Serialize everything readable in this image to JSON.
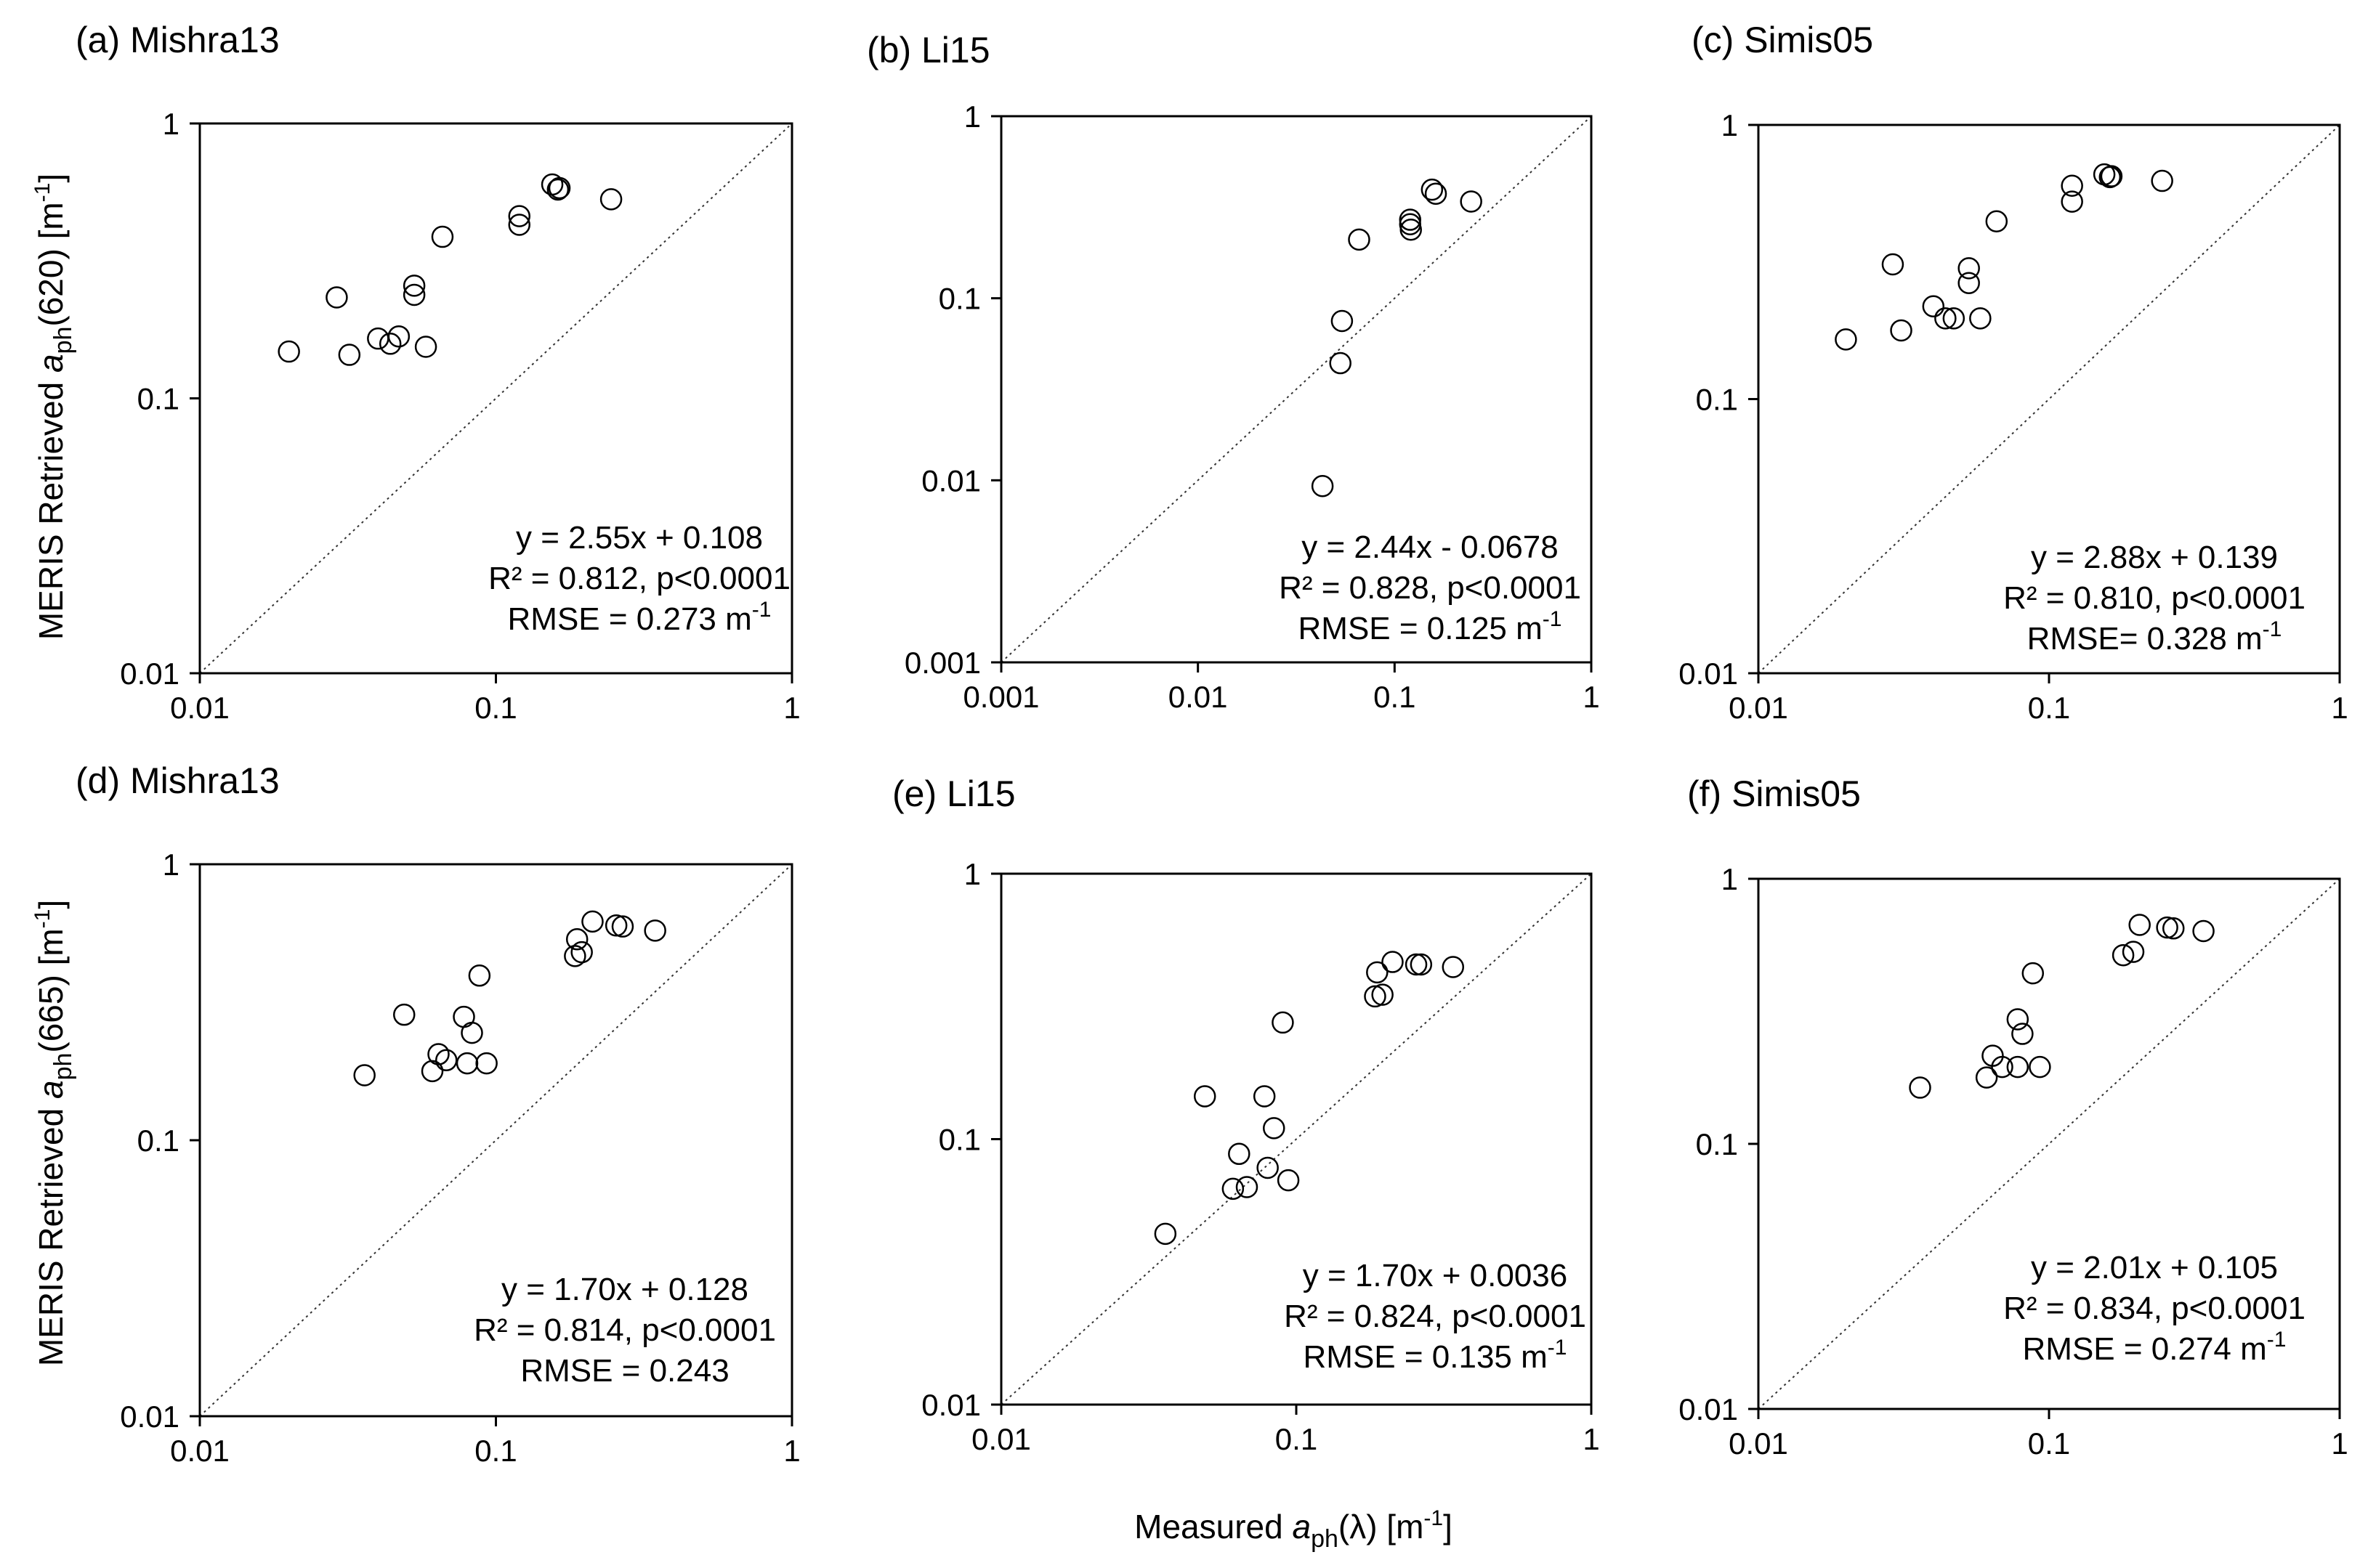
{
  "figure": {
    "ylabel_top": {
      "prefix": "MERIS Retrieved ",
      "symbol": "a",
      "sub": "ph",
      "suffix": "(620) [m",
      "sup": "-1",
      "end": "]"
    },
    "ylabel_bottom": {
      "prefix": "MERIS Retrieved ",
      "symbol": "a",
      "sub": "ph",
      "suffix": "(665) [m",
      "sup": "-1",
      "end": "]"
    },
    "xlabel": {
      "prefix": "Measured ",
      "symbol": "a",
      "sub": "ph",
      "suffix": "(λ) [m",
      "sup": "-1",
      "end": "]"
    }
  },
  "chart_data": [
    {
      "type": "scatter",
      "title": "(a) Mishra13",
      "xscale": "log",
      "yscale": "log",
      "xlim": [
        0.01,
        1
      ],
      "ylim": [
        0.01,
        1
      ],
      "xticks": [
        "0.01",
        "0.1",
        "1"
      ],
      "yticks": [
        "0.01",
        "0.1",
        "1"
      ],
      "one_to_one_line": true,
      "x": [
        0.02,
        0.029,
        0.032,
        0.04,
        0.044,
        0.047,
        0.053,
        0.053,
        0.058,
        0.066,
        0.12,
        0.12,
        0.155,
        0.162,
        0.164,
        0.245
      ],
      "y": [
        0.148,
        0.233,
        0.144,
        0.165,
        0.158,
        0.168,
        0.257,
        0.238,
        0.154,
        0.387,
        0.46,
        0.428,
        0.6,
        0.575,
        0.582,
        0.53
      ],
      "annotation": {
        "line1": "y = 2.55x + 0.108",
        "line2": "R² = 0.812, p<0.0001",
        "line3_prefix": "RMSE = 0.273 m",
        "line3_sup": "-1"
      }
    },
    {
      "type": "scatter",
      "title": "(b) Li15",
      "xscale": "log",
      "yscale": "log",
      "xlim": [
        0.001,
        1
      ],
      "ylim": [
        0.001,
        1
      ],
      "xticks": [
        "0.001",
        "0.01",
        "0.1",
        "1"
      ],
      "yticks": [
        "0.001",
        "0.01",
        "0.1",
        "1"
      ],
      "one_to_one_line": true,
      "x": [
        0.043,
        0.053,
        0.054,
        0.066,
        0.12,
        0.12,
        0.121,
        0.155,
        0.162,
        0.245
      ],
      "y": [
        0.0093,
        0.044,
        0.075,
        0.21,
        0.27,
        0.255,
        0.238,
        0.395,
        0.375,
        0.34
      ],
      "annotation": {
        "line1": "y = 2.44x - 0.0678",
        "line2": "R² = 0.828, p<0.0001",
        "line3_prefix": "RMSE = 0.125 m",
        "line3_sup": "-1"
      }
    },
    {
      "type": "scatter",
      "title": "(c) Simis05",
      "xscale": "log",
      "yscale": "log",
      "xlim": [
        0.01,
        1
      ],
      "ylim": [
        0.01,
        1
      ],
      "xticks": [
        "0.01",
        "0.1",
        "1"
      ],
      "yticks": [
        "0.01",
        "0.1",
        "1"
      ],
      "one_to_one_line": true,
      "x": [
        0.02,
        0.029,
        0.031,
        0.04,
        0.044,
        0.047,
        0.053,
        0.053,
        0.058,
        0.066,
        0.12,
        0.12,
        0.155,
        0.162,
        0.164,
        0.245
      ],
      "y": [
        0.165,
        0.31,
        0.178,
        0.218,
        0.197,
        0.197,
        0.3,
        0.265,
        0.197,
        0.445,
        0.6,
        0.525,
        0.66,
        0.645,
        0.65,
        0.625
      ],
      "annotation": {
        "line1": "y = 2.88x + 0.139",
        "line2": "R² = 0.810, p<0.0001",
        "line3_prefix": "RMSE= 0.328 m",
        "line3_sup": "-1"
      }
    },
    {
      "type": "scatter",
      "title": "(d) Mishra13",
      "xscale": "log",
      "yscale": "log",
      "xlim": [
        0.01,
        1
      ],
      "ylim": [
        0.01,
        1
      ],
      "xticks": [
        "0.01",
        "0.1",
        "1"
      ],
      "yticks": [
        "0.01",
        "0.1",
        "1"
      ],
      "one_to_one_line": true,
      "x": [
        0.036,
        0.049,
        0.061,
        0.064,
        0.068,
        0.078,
        0.08,
        0.083,
        0.088,
        0.093,
        0.185,
        0.188,
        0.195,
        0.212,
        0.255,
        0.268,
        0.345
      ],
      "y": [
        0.172,
        0.285,
        0.178,
        0.205,
        0.195,
        0.28,
        0.19,
        0.245,
        0.395,
        0.19,
        0.465,
        0.535,
        0.48,
        0.62,
        0.6,
        0.595,
        0.575
      ],
      "annotation": {
        "line1": "y = 1.70x + 0.128",
        "line2": "R² = 0.814, p<0.0001",
        "line3_prefix": "RMSE = 0.243",
        "line3_sup": ""
      }
    },
    {
      "type": "scatter",
      "title": "(e) Li15",
      "xscale": "log",
      "yscale": "log",
      "xlim": [
        0.01,
        1
      ],
      "ylim": [
        0.01,
        1
      ],
      "xticks": [
        "0.01",
        "0.1",
        "1"
      ],
      "yticks": [
        "0.01",
        "0.1",
        "1"
      ],
      "one_to_one_line": true,
      "x": [
        0.036,
        0.049,
        0.061,
        0.064,
        0.068,
        0.078,
        0.08,
        0.084,
        0.09,
        0.094,
        0.185,
        0.188,
        0.196,
        0.212,
        0.255,
        0.265,
        0.34
      ],
      "y": [
        0.044,
        0.145,
        0.065,
        0.088,
        0.066,
        0.145,
        0.078,
        0.11,
        0.275,
        0.07,
        0.345,
        0.425,
        0.35,
        0.465,
        0.455,
        0.455,
        0.445
      ],
      "annotation": {
        "line1": "y = 1.70x + 0.0036",
        "line2": "R² = 0.824, p<0.0001",
        "line3_prefix": "RMSE = 0.135 m",
        "line3_sup": "-1"
      }
    },
    {
      "type": "scatter",
      "title": "(f) Simis05",
      "xscale": "log",
      "yscale": "log",
      "xlim": [
        0.01,
        1
      ],
      "ylim": [
        0.01,
        1
      ],
      "xticks": [
        "0.01",
        "0.1",
        "1"
      ],
      "yticks": [
        "0.01",
        "0.1",
        "1"
      ],
      "one_to_one_line": true,
      "x": [
        0.036,
        0.061,
        0.064,
        0.069,
        0.078,
        0.078,
        0.081,
        0.088,
        0.093,
        0.18,
        0.195,
        0.205,
        0.255,
        0.268,
        0.34
      ],
      "y": [
        0.163,
        0.178,
        0.215,
        0.195,
        0.195,
        0.295,
        0.26,
        0.44,
        0.195,
        0.515,
        0.53,
        0.67,
        0.655,
        0.65,
        0.635
      ],
      "annotation": {
        "line1": "y = 2.01x + 0.105",
        "line2": "R² = 0.834, p<0.0001",
        "line3_prefix": "RMSE = 0.274 m",
        "line3_sup": "-1"
      }
    }
  ]
}
